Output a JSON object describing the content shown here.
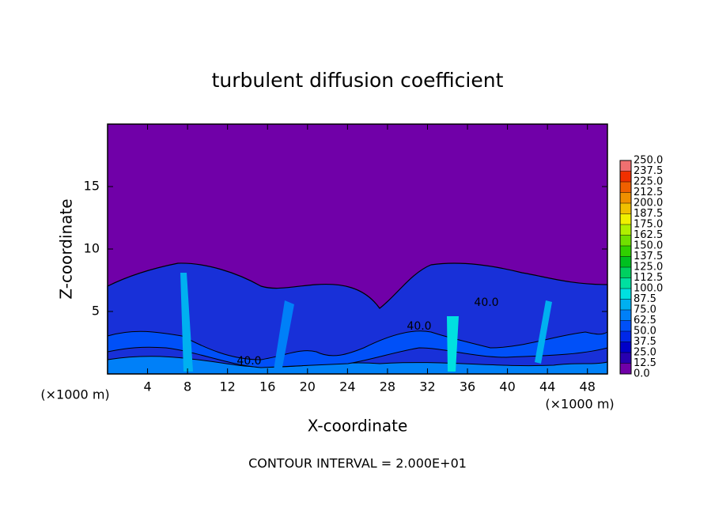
{
  "chart_data": {
    "type": "contour",
    "title": "turbulent diffusion coefficient",
    "x_label": "X-coordinate",
    "y_label": "Z-coordinate",
    "x_unit_label": "(×1000 m)",
    "footnote": "CONTOUR INTERVAL = 2.000E+01",
    "xlim": [
      0,
      50
    ],
    "ylim": [
      0,
      20
    ],
    "xticks": [
      4,
      8,
      12,
      16,
      20,
      24,
      28,
      32,
      36,
      40,
      44,
      48
    ],
    "yticks": [
      5,
      10,
      15
    ],
    "contour_labels": [
      "40.0",
      "40.0",
      "40.0"
    ],
    "colorbar": {
      "levels": [
        {
          "value": 0,
          "label": "0.0"
        },
        12.5,
        {
          "value": 25,
          "label": "25.0"
        },
        37.5,
        {
          "value": 50,
          "label": "50.0"
        },
        62.5,
        {
          "value": 75,
          "label": "75.0"
        },
        87.5,
        {
          "value": 100,
          "label": "100.0"
        },
        112.5,
        {
          "value": 125,
          "label": "125.0"
        },
        137.5,
        {
          "value": 150,
          "label": "150.0"
        },
        162.5,
        {
          "value": 175,
          "label": "175.0"
        },
        187.5,
        {
          "value": 200,
          "label": "200.0"
        },
        212.5,
        {
          "value": 225,
          "label": "225.0"
        },
        237.5,
        {
          "value": 250,
          "label": "250.0"
        }
      ],
      "colors": [
        "#7000a8",
        "#2800b0",
        "#0000c8",
        "#0028e8",
        "#0050f8",
        "#0080f8",
        "#00b0f0",
        "#00e0e0",
        "#00e0a0",
        "#00d060",
        "#00c020",
        "#30d000",
        "#70e000",
        "#b0f000",
        "#f0f000",
        "#f0c000",
        "#f09000",
        "#f06000",
        "#f03000",
        "#f07070"
      ]
    }
  }
}
